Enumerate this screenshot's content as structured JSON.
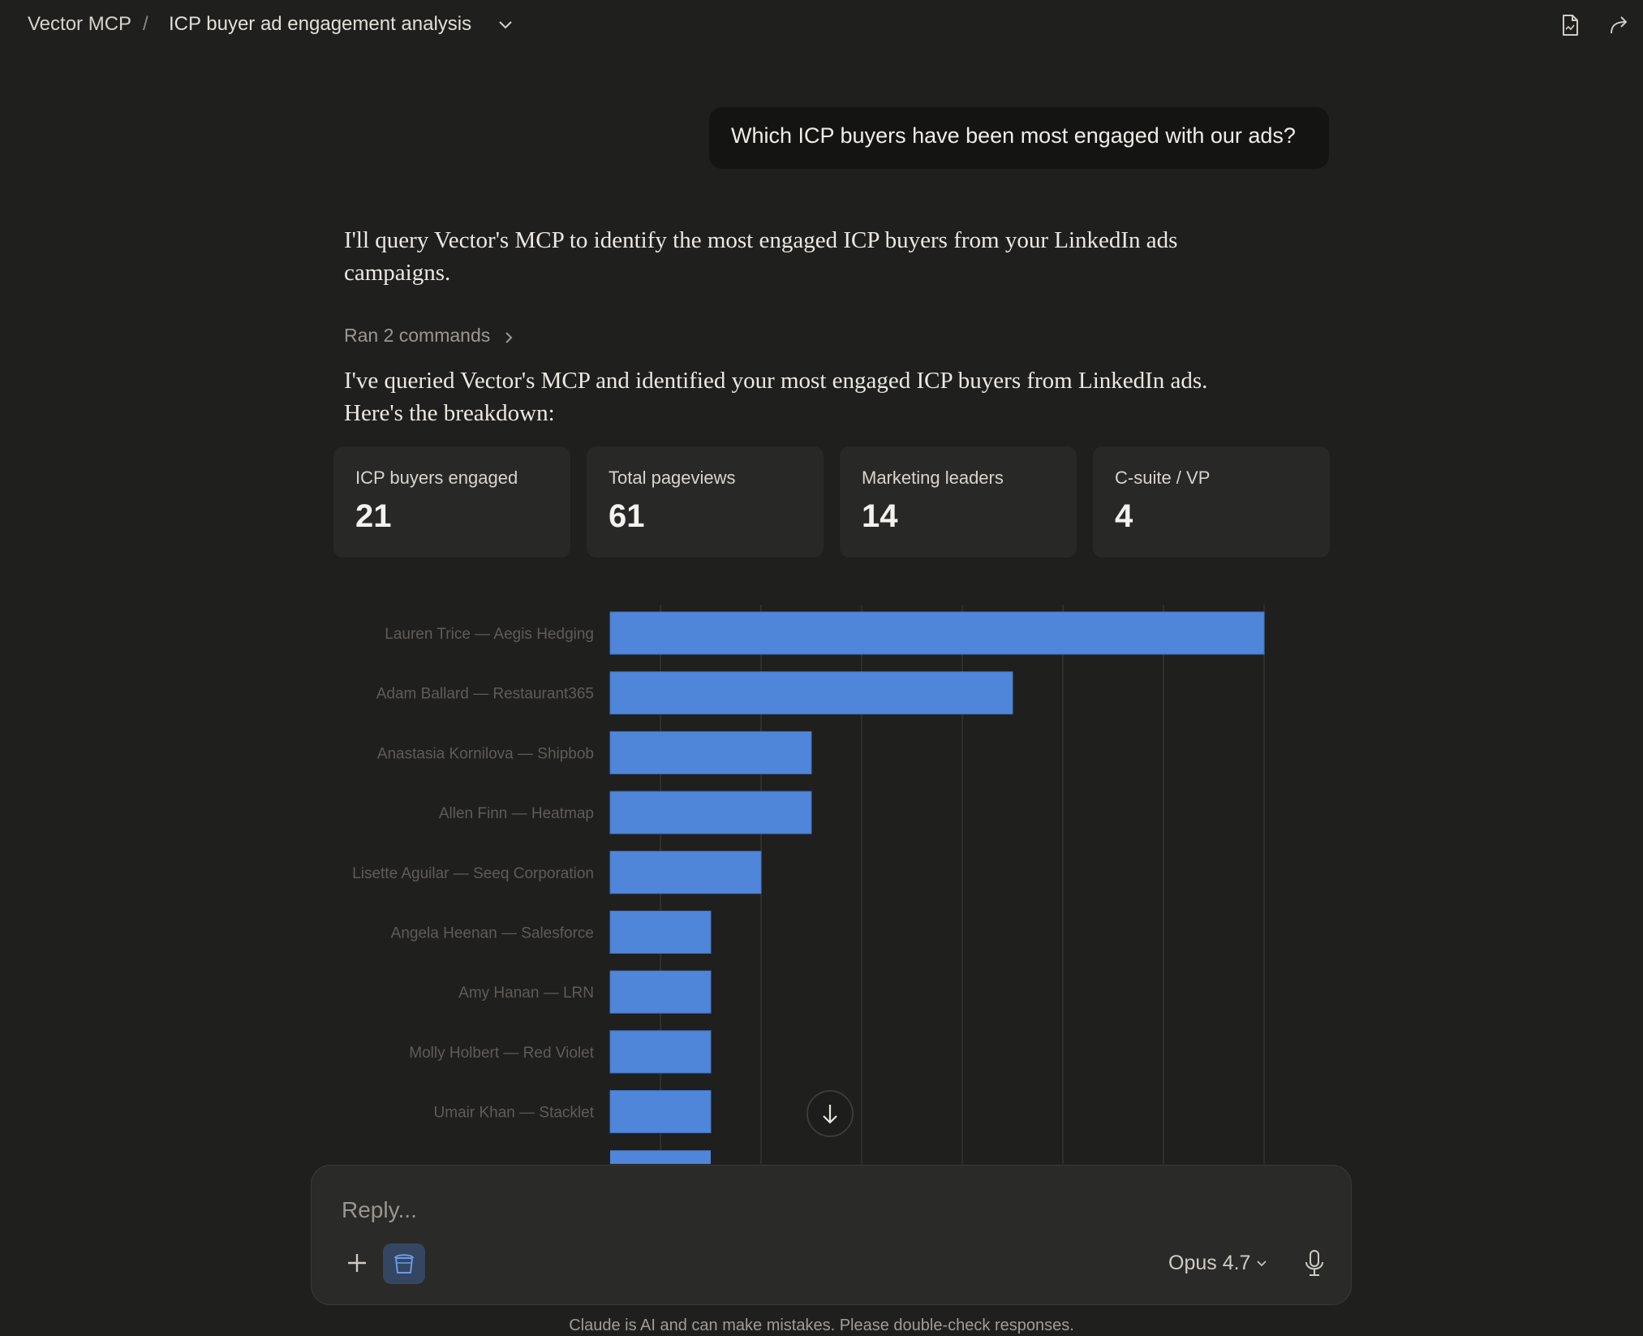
{
  "breadcrumb": {
    "project": "Vector MCP",
    "separator": "/",
    "title": "ICP buyer ad engagement analysis"
  },
  "conversation": {
    "user_message": "Which ICP buyers have been most engaged with our ads?",
    "assistant_intro_line1": "I'll query Vector's MCP to identify the most engaged ICP buyers from your LinkedIn ads",
    "assistant_intro_line2": "campaigns.",
    "tool_summary": "Ran 2 commands",
    "assistant_result_line1": "I've queried Vector's MCP and identified your most engaged ICP buyers from LinkedIn ads.",
    "assistant_result_line2": "Here's the breakdown:"
  },
  "stats": [
    {
      "label": "ICP buyers engaged",
      "value": "21"
    },
    {
      "label": "Total pageviews",
      "value": "61"
    },
    {
      "label": "Marketing leaders",
      "value": "14"
    },
    {
      "label": "C-suite / VP",
      "value": "4"
    }
  ],
  "chart_data": {
    "type": "bar",
    "orientation": "horizontal",
    "categories": [
      "Lauren Trice — Aegis Hedging",
      "Adam Ballard — Restaurant365",
      "Anastasia Kornilova — Shipbob",
      "Allen Finn — Heatmap",
      "Lisette Aguilar — Seeq Corporation",
      "Angela Heenan — Salesforce",
      "Amy Hanan — LRN",
      "Molly Holbert — Red Violet",
      "Umair Khan — Stacklet"
    ],
    "values": [
      13,
      8,
      4,
      4,
      3,
      2,
      2,
      2,
      2
    ],
    "partially_visible_extra_bar_value": 2,
    "xlim": [
      0,
      14
    ],
    "grid": true,
    "bar_color": "#4f86d9"
  },
  "composer": {
    "placeholder": "Reply...",
    "model": "Opus 4.7"
  },
  "footer": {
    "disclaimer": "Claude is AI and can make mistakes. Please double-check responses."
  },
  "colors": {
    "background": "#1f1f1e",
    "card": "#282827",
    "bar": "#4f86d9",
    "tool_active": "#344661"
  }
}
